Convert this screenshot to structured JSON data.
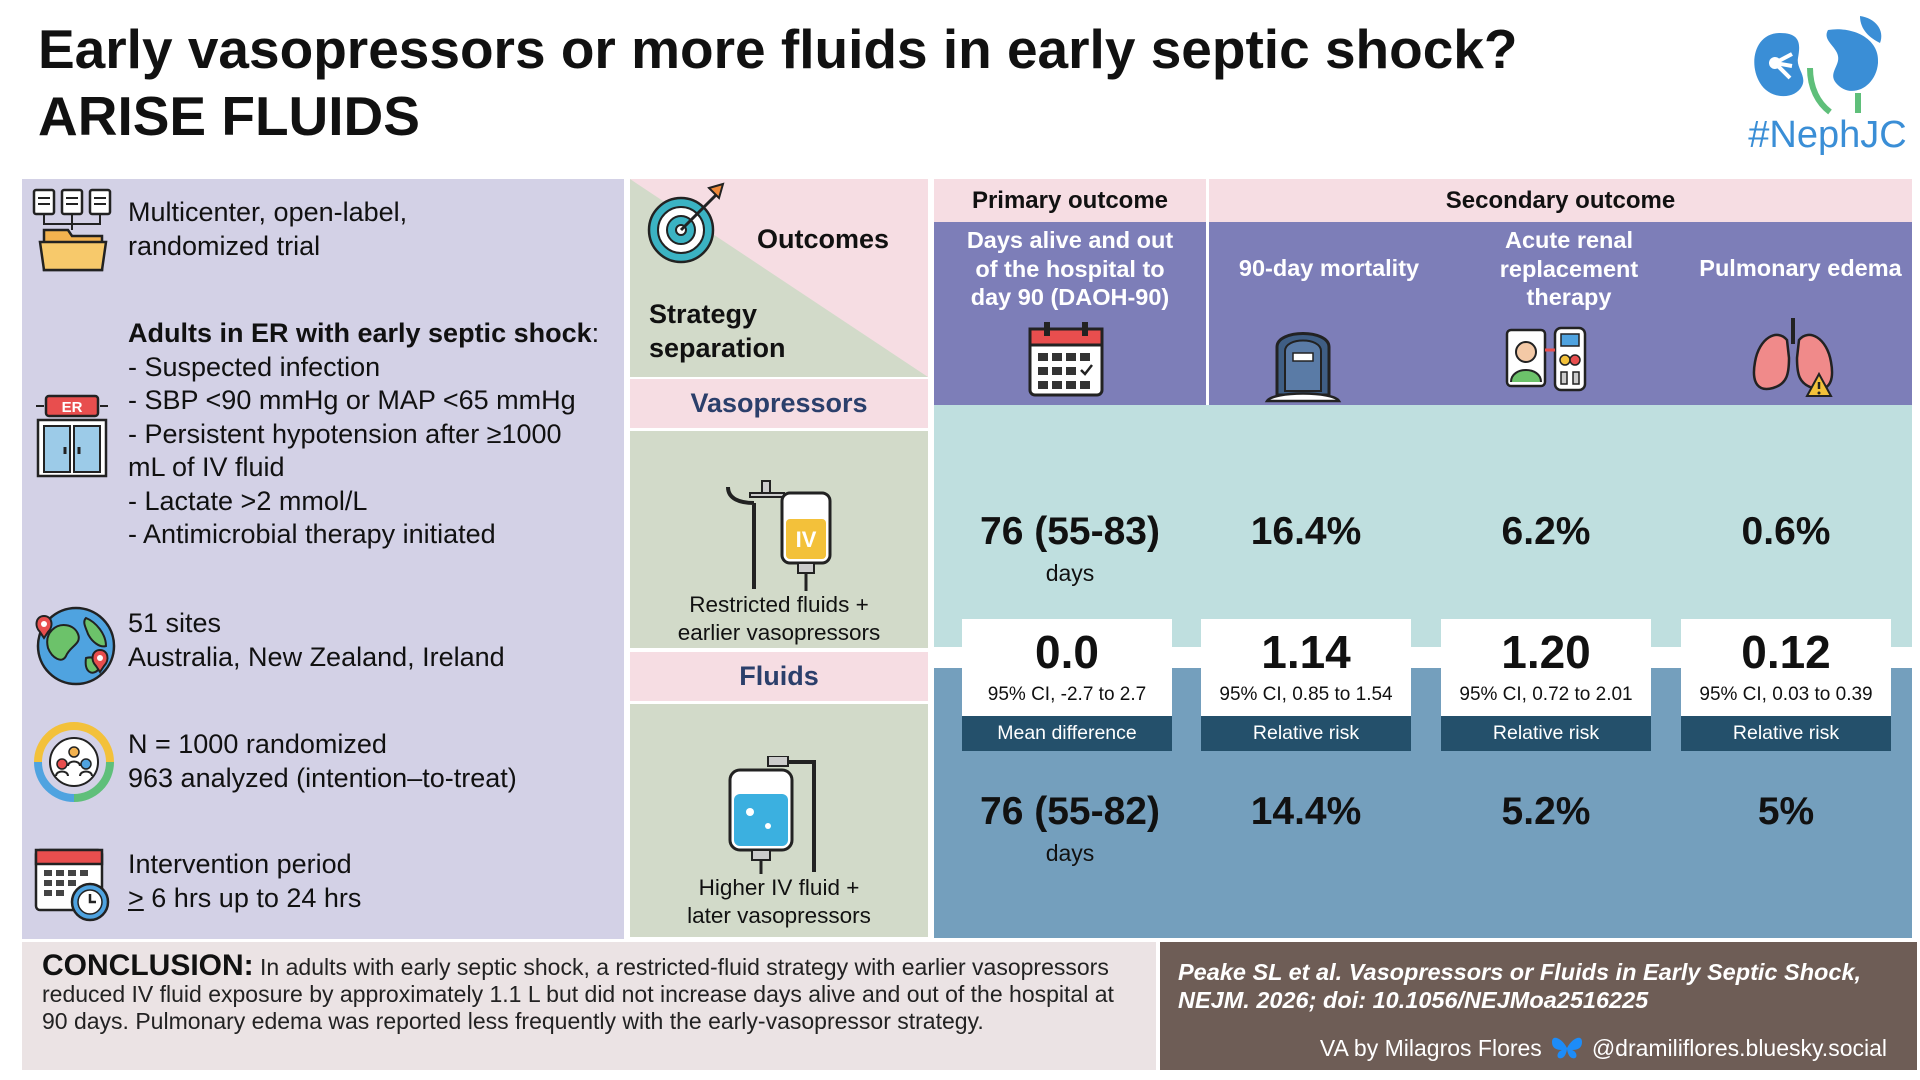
{
  "header": {
    "title_line1": "Early vasopressors or more fluids in early septic shock?",
    "title_line2": "ARISE FLUIDS",
    "brand": "#NephJC"
  },
  "left_panel": {
    "design_line1": "Multicenter, open-label,",
    "design_line2": "randomized trial",
    "population_title": "Adults in ER with early septic shock",
    "population_colon": ":",
    "criteria": [
      "- Suspected infection",
      "- SBP <90 mmHg or MAP <65 mmHg",
      "- Persistent hypotension after ≥1000",
      "mL of IV fluid",
      "- Lactate >2 mmol/L",
      "- Antimicrobial therapy initiated"
    ],
    "er_sign": "ER",
    "sites_line1": "51 sites",
    "sites_line2": "Australia, New Zealand, Ireland",
    "n_line1": "N = 1000 randomized",
    "n_line2": "963 analyzed (intention–to-treat)",
    "period_line1": "Intervention period",
    "period_ge": ">",
    "period_line2": " 6 hrs up to 24 hrs"
  },
  "middle": {
    "outcomes_label": "Outcomes",
    "strategy_label_1": "Strategy",
    "strategy_label_2": "separation",
    "arm1_label": "Vasopressors",
    "arm1_desc_1": "Restricted fluids +",
    "arm1_desc_2": "earlier vasopressors",
    "arm1_bag_label": "IV",
    "arm2_label": "Fluids",
    "arm2_desc_1": "Higher IV fluid +",
    "arm2_desc_2": "later vasopressors"
  },
  "outcomes": {
    "primary_header": "Primary outcome",
    "secondary_header": "Secondary outcome",
    "columns": [
      {
        "name_lines": [
          "Days alive and out",
          "of the hospital to",
          "day 90 (DAOH-90)"
        ],
        "icon": "calendar-icon",
        "vaso_value": "76 (55-83)",
        "vaso_unit": "days",
        "effect": "0.0",
        "ci": "95% CI, -2.7 to 2.7",
        "measure": "Mean difference",
        "fluid_value": "76 (55-82)",
        "fluid_unit": "days"
      },
      {
        "name_lines": [
          "90-day mortality"
        ],
        "icon": "tombstone-icon",
        "vaso_value": "16.4%",
        "effect": "1.14",
        "ci": "95% CI, 0.85 to 1.54",
        "measure": "Relative risk",
        "fluid_value": "14.4%"
      },
      {
        "name_lines": [
          "Acute renal",
          "replacement",
          "therapy"
        ],
        "icon": "dialysis-icon",
        "vaso_value": "6.2%",
        "effect": "1.20",
        "ci": "95% CI, 0.72 to 2.01",
        "measure": "Relative risk",
        "fluid_value": "5.2%"
      },
      {
        "name_lines": [
          "Pulmonary edema"
        ],
        "icon": "lungs-warning-icon",
        "vaso_value": "0.6%",
        "effect": "0.12",
        "ci": "95% CI, 0.03 to 0.39",
        "measure": "Relative risk",
        "fluid_value": "5%"
      }
    ]
  },
  "footer": {
    "conclusion_label": "CONCLUSION:",
    "conclusion_text": " In adults with early septic shock, a restricted-fluid strategy with earlier vasopressors reduced IV fluid exposure by approximately 1.1 L but did not increase days alive and out of the hospital at 90 days. Pulmonary edema was reported less frequently with the early-vasopressor strategy.",
    "citation_line1": "Peake SL et al. Vasopressors or Fluids in Early Septic Shock,",
    "citation_line2": "NEJM. 2026; doi: 10.1056/NEJMoa2516225",
    "credit": "VA by Milagros Flores",
    "handle": "@dramiliflores.bluesky.social"
  },
  "colors": {
    "left_panel": "#d3d1e6",
    "pink": "#f6dde3",
    "sage": "#d2dac9",
    "purple_header": "#7d7eb8",
    "band_light": "#bfdfdf",
    "band_dark": "#749fbd",
    "measure_bar": "#24506b",
    "citation_bg": "#6e5d56",
    "brand_blue": "#3a8ed6"
  }
}
